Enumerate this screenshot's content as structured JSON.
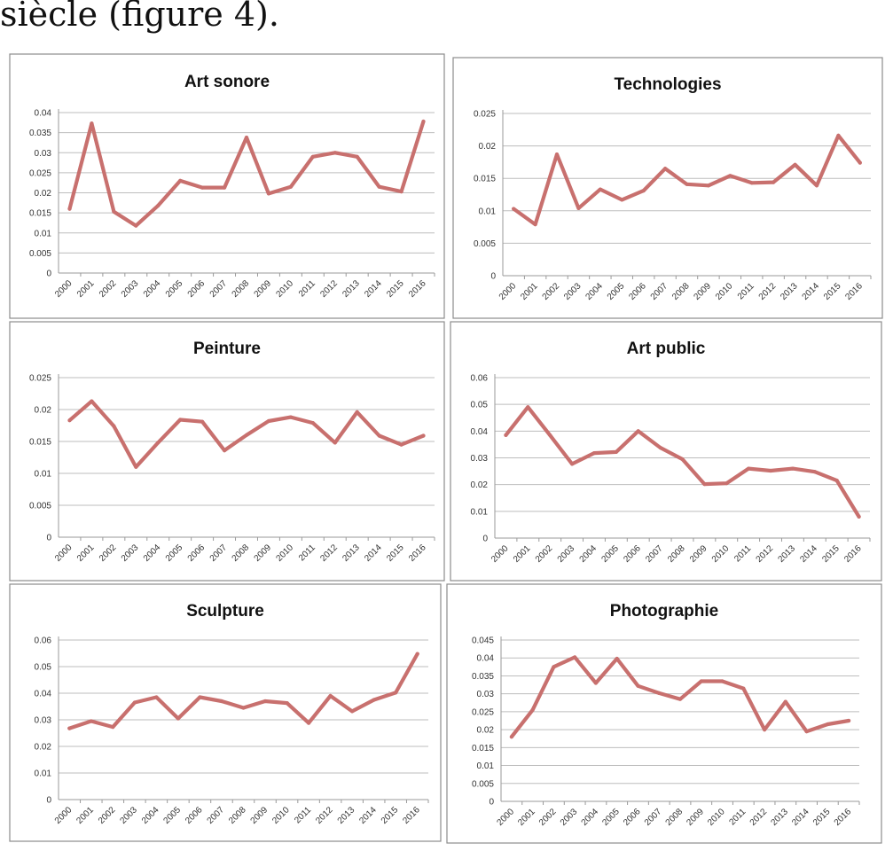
{
  "heading": "siècle (figure 4).",
  "colors": {
    "line": "#c8706e",
    "grid": "#bdbdbd",
    "frame": "#8c8c8c"
  },
  "chart_data": [
    {
      "type": "line",
      "title": "Art sonore",
      "categories": [
        "2000",
        "2001",
        "2002",
        "2003",
        "2004",
        "2005",
        "2006",
        "2007",
        "2008",
        "2009",
        "2010",
        "2011",
        "2012",
        "2013",
        "2014",
        "2015",
        "2016"
      ],
      "values": [
        0.016,
        0.0373,
        0.0153,
        0.0118,
        0.0168,
        0.023,
        0.0213,
        0.0213,
        0.0338,
        0.0198,
        0.0215,
        0.029,
        0.03,
        0.029,
        0.0215,
        0.0203,
        0.0378
      ],
      "ylim": [
        0,
        0.04
      ],
      "yticks": [
        "0",
        "0.005",
        "0.01",
        "0.015",
        "0.02",
        "0.025",
        "0.03",
        "0.035",
        "0.04"
      ],
      "grid": true
    },
    {
      "type": "line",
      "title": "Technologies",
      "categories": [
        "2000",
        "2001",
        "2002",
        "2003",
        "2004",
        "2005",
        "2006",
        "2007",
        "2008",
        "2009",
        "2010",
        "2011",
        "2012",
        "2013",
        "2014",
        "2015",
        "2016"
      ],
      "values": [
        0.0103,
        0.0079,
        0.0187,
        0.0104,
        0.0133,
        0.0117,
        0.0131,
        0.0165,
        0.0141,
        0.0139,
        0.0154,
        0.0143,
        0.0144,
        0.0171,
        0.0139,
        0.0216,
        0.0174
      ],
      "ylim": [
        0,
        0.025
      ],
      "yticks": [
        "0",
        "0.005",
        "0.01",
        "0.015",
        "0.02",
        "0.025"
      ],
      "grid": true
    },
    {
      "type": "line",
      "title": "Peinture",
      "categories": [
        "2000",
        "2001",
        "2002",
        "2003",
        "2004",
        "2005",
        "2006",
        "2007",
        "2008",
        "2009",
        "2010",
        "2011",
        "2012",
        "2013",
        "2014",
        "2015",
        "2016"
      ],
      "values": [
        0.0183,
        0.0213,
        0.0174,
        0.011,
        0.0148,
        0.0184,
        0.0181,
        0.0136,
        0.016,
        0.0182,
        0.0188,
        0.0179,
        0.0148,
        0.0196,
        0.0159,
        0.0145,
        0.0159
      ],
      "ylim": [
        0,
        0.025
      ],
      "yticks": [
        "0",
        "0.005",
        "0.01",
        "0.015",
        "0.02",
        "0.025"
      ],
      "grid": true
    },
    {
      "type": "line",
      "title": "Art public",
      "categories": [
        "2000",
        "2001",
        "2002",
        "2003",
        "2004",
        "2005",
        "2006",
        "2007",
        "2008",
        "2009",
        "2010",
        "2011",
        "2012",
        "2013",
        "2014",
        "2015",
        "2016"
      ],
      "values": [
        0.0385,
        0.049,
        0.0385,
        0.0277,
        0.0318,
        0.0322,
        0.04,
        0.0338,
        0.0295,
        0.0202,
        0.0205,
        0.026,
        0.0252,
        0.026,
        0.0248,
        0.0215,
        0.008
      ],
      "ylim": [
        0,
        0.06
      ],
      "yticks": [
        "0",
        "0.01",
        "0.02",
        "0.03",
        "0.04",
        "0.05",
        "0.06"
      ],
      "grid": true
    },
    {
      "type": "line",
      "title": "Sculpture",
      "categories": [
        "2000",
        "2001",
        "2002",
        "2003",
        "2004",
        "2005",
        "2006",
        "2007",
        "2008",
        "2009",
        "2010",
        "2011",
        "2012",
        "2013",
        "2014",
        "2015",
        "2016"
      ],
      "values": [
        0.0268,
        0.0295,
        0.0273,
        0.0365,
        0.0385,
        0.0305,
        0.0385,
        0.037,
        0.0345,
        0.037,
        0.0363,
        0.0288,
        0.039,
        0.0332,
        0.0375,
        0.0402,
        0.0548
      ],
      "ylim": [
        0,
        0.06
      ],
      "yticks": [
        "0",
        "0.01",
        "0.02",
        "0.03",
        "0.04",
        "0.05",
        "0.06"
      ],
      "grid": true
    },
    {
      "type": "line",
      "title": "Photographie",
      "categories": [
        "2000",
        "2001",
        "2002",
        "2003",
        "2004",
        "2005",
        "2006",
        "2007",
        "2008",
        "2009",
        "2010",
        "2011",
        "2012",
        "2013",
        "2014",
        "2015",
        "2016"
      ],
      "values": [
        0.018,
        0.0255,
        0.0375,
        0.0402,
        0.033,
        0.0398,
        0.0322,
        0.0302,
        0.0285,
        0.0335,
        0.0335,
        0.0315,
        0.02,
        0.0278,
        0.0195,
        0.0215,
        0.0225
      ],
      "ylim": [
        0,
        0.045
      ],
      "yticks": [
        "0",
        "0.005",
        "0.01",
        "0.015",
        "0.02",
        "0.025",
        "0.03",
        "0.035",
        "0.04",
        "0.045"
      ],
      "grid": true
    }
  ]
}
